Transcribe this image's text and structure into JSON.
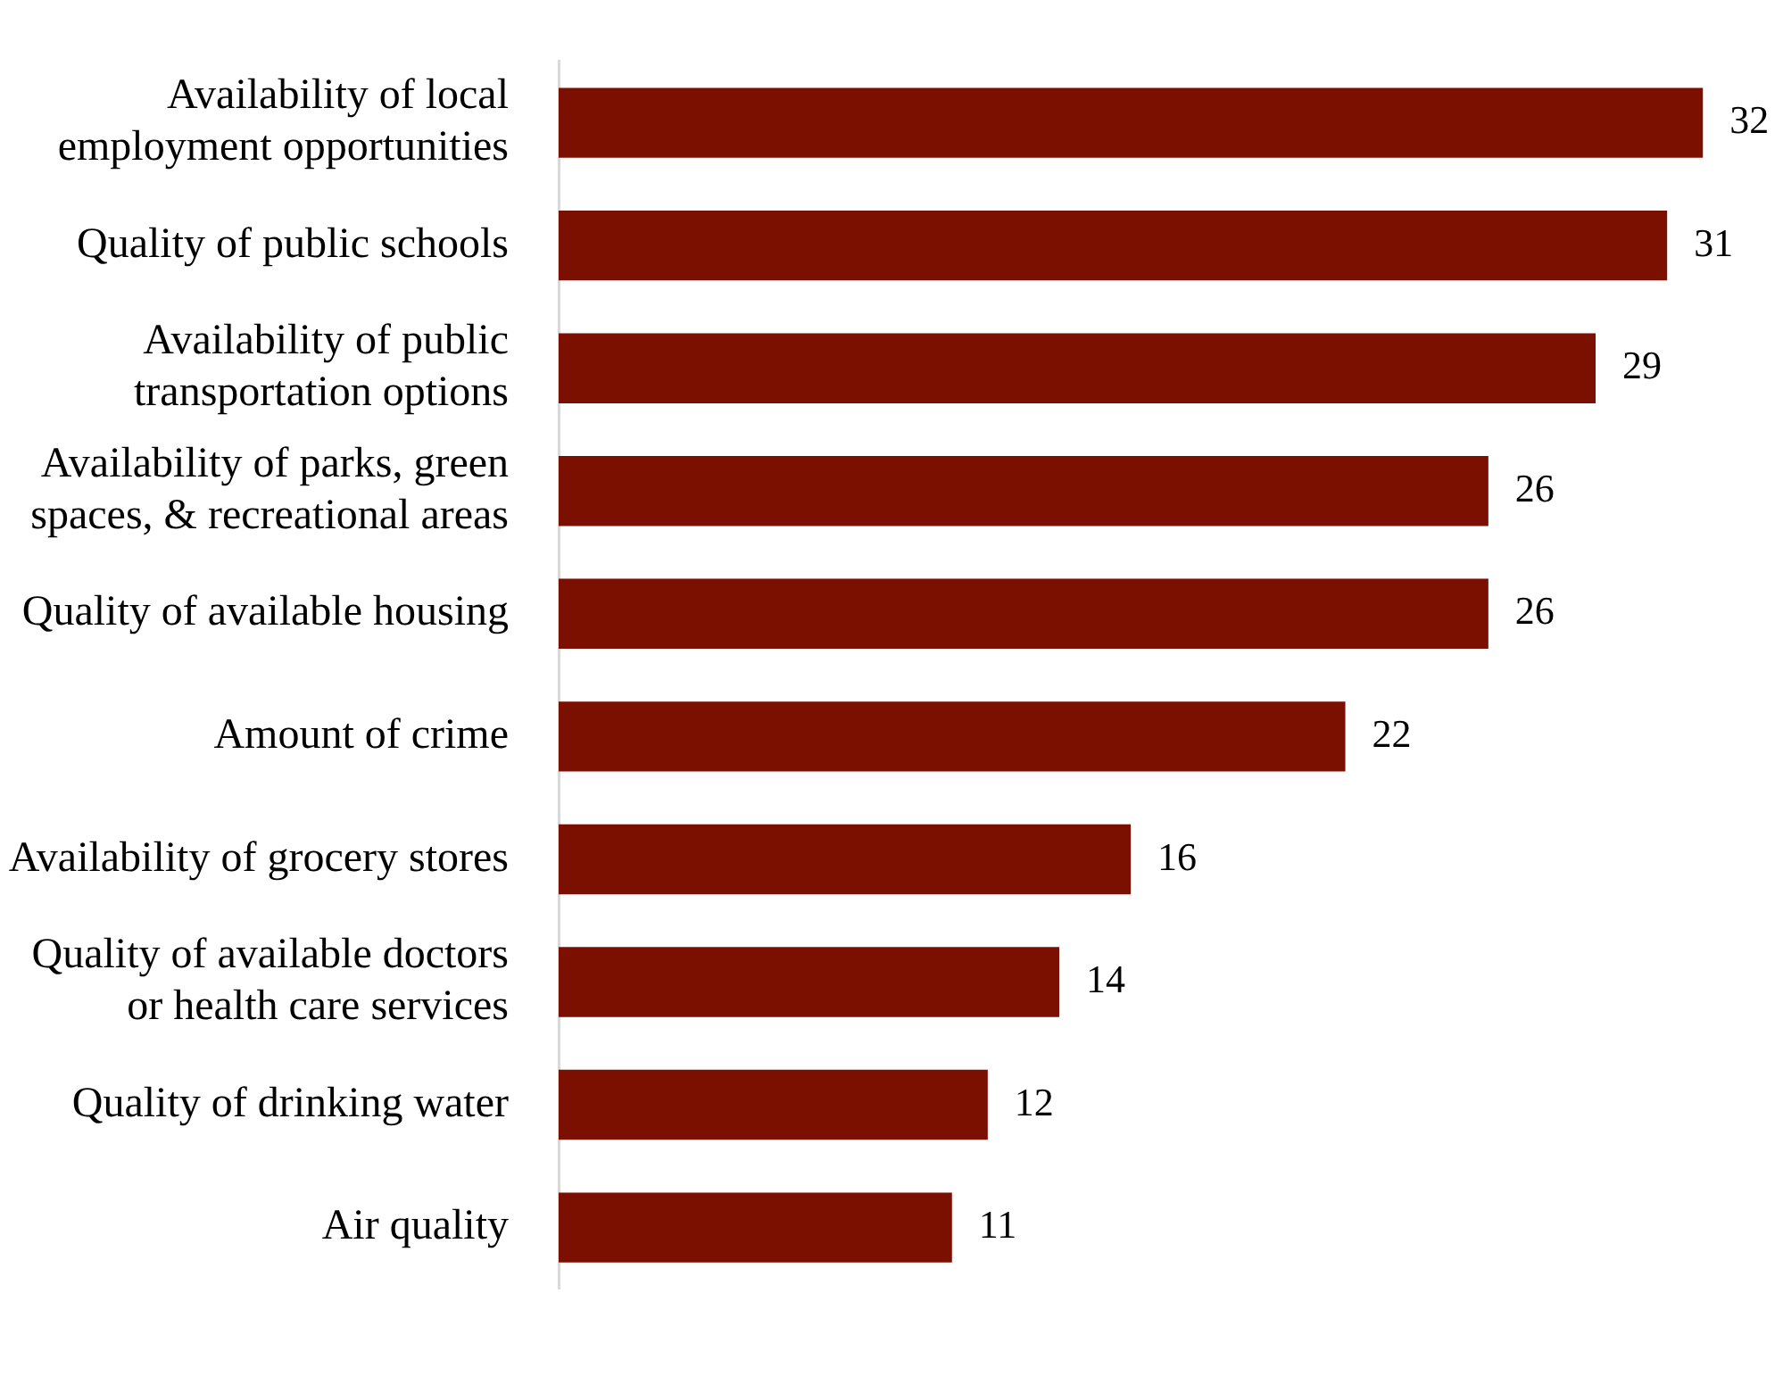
{
  "chart_data": {
    "type": "bar",
    "orientation": "horizontal",
    "categories": [
      "Availability of local employment opportunities",
      "Quality of public schools",
      "Availability of public transportation options",
      "Availability of parks, green spaces, & recreational areas",
      "Quality of available housing",
      "Amount of crime",
      "Availability of grocery stores",
      "Quality of available doctors or health care services",
      "Quality of drinking water",
      "Air quality"
    ],
    "values": [
      32,
      31,
      29,
      26,
      26,
      22,
      16,
      14,
      12,
      11
    ],
    "color": "#7b0f00",
    "data_labels": true,
    "grid": false,
    "legend": false
  }
}
